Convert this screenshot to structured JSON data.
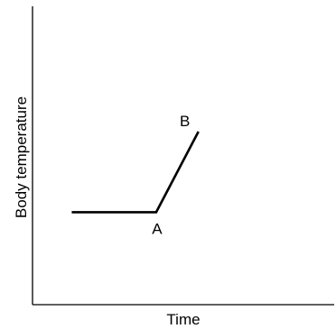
{
  "chart_data": {
    "type": "line",
    "xlabel": "Time",
    "ylabel": "Body temperature",
    "xlim": [
      0,
      10
    ],
    "ylim": [
      0,
      10
    ],
    "grid": false,
    "legend": "none",
    "series": [
      {
        "x": [
          1.3,
          4.1,
          5.5
        ],
        "y": [
          3.1,
          3.1,
          5.8
        ]
      }
    ],
    "annotations": [
      {
        "text": "A",
        "x": 4.1,
        "y": 3.1
      },
      {
        "text": "B",
        "x": 5.5,
        "y": 5.8
      }
    ]
  }
}
